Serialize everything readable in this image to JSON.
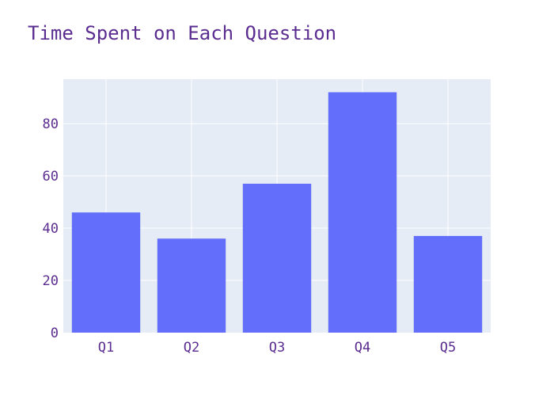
{
  "chart_data": {
    "type": "bar",
    "title": "Time Spent on Each Question",
    "xlabel": "",
    "ylabel": "",
    "categories": [
      "Q1",
      "Q2",
      "Q3",
      "Q4",
      "Q5"
    ],
    "values": [
      46,
      36,
      57,
      92,
      37
    ],
    "ylim": [
      0,
      97
    ],
    "yticks": [
      0,
      20,
      40,
      60,
      80
    ],
    "grid": true,
    "legend": "none"
  },
  "colors": {
    "bar": "#636efa",
    "plot_background": "#e5ecf6",
    "grid": "#ffffff",
    "text": "#5b2d90"
  }
}
